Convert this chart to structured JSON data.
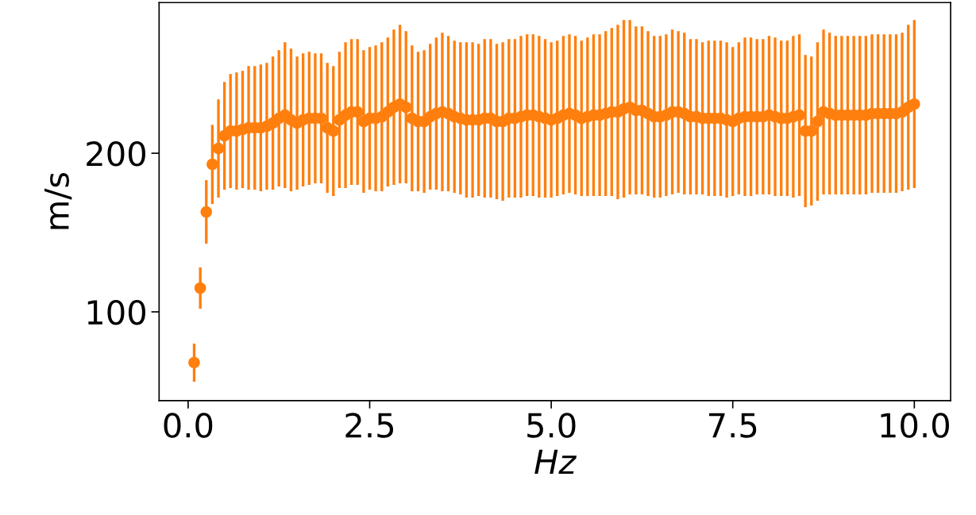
{
  "chart_data": {
    "type": "scatter",
    "xlabel": "Hz",
    "ylabel": "m/s",
    "x": [
      0.083,
      0.167,
      0.25,
      0.333,
      0.417,
      0.5,
      0.583,
      0.667,
      0.75,
      0.833,
      0.917,
      1,
      1.083,
      1.167,
      1.25,
      1.333,
      1.417,
      1.5,
      1.583,
      1.667,
      1.75,
      1.833,
      1.917,
      2,
      2.083,
      2.167,
      2.25,
      2.333,
      2.417,
      2.5,
      2.583,
      2.667,
      2.75,
      2.833,
      2.917,
      3,
      3.083,
      3.167,
      3.25,
      3.333,
      3.417,
      3.5,
      3.583,
      3.667,
      3.75,
      3.833,
      3.917,
      4,
      4.083,
      4.167,
      4.25,
      4.333,
      4.417,
      4.5,
      4.583,
      4.667,
      4.75,
      4.833,
      4.917,
      5,
      5.083,
      5.167,
      5.25,
      5.333,
      5.417,
      5.5,
      5.583,
      5.667,
      5.75,
      5.833,
      5.917,
      6,
      6.083,
      6.167,
      6.25,
      6.333,
      6.417,
      6.5,
      6.583,
      6.667,
      6.75,
      6.833,
      6.917,
      7,
      7.083,
      7.167,
      7.25,
      7.333,
      7.417,
      7.5,
      7.583,
      7.667,
      7.75,
      7.833,
      7.917,
      8,
      8.083,
      8.167,
      8.25,
      8.333,
      8.417,
      8.5,
      8.583,
      8.667,
      8.75,
      8.833,
      8.917,
      9,
      9.083,
      9.167,
      9.25,
      9.333,
      9.417,
      9.5,
      9.583,
      9.667,
      9.75,
      9.833,
      9.917,
      10
    ],
    "series": [
      {
        "color": "#ff7f0e",
        "values": [
          68,
          115,
          163,
          193,
          203,
          211,
          214,
          214,
          215,
          216,
          216,
          216,
          217,
          219,
          222,
          224,
          221,
          219,
          221,
          222,
          222,
          222,
          216,
          214,
          221,
          224,
          226,
          226,
          220,
          222,
          222,
          223,
          226,
          229,
          231,
          229,
          222,
          220,
          220,
          223,
          225,
          226,
          225,
          223,
          222,
          221,
          221,
          221,
          222,
          222,
          220,
          220,
          222,
          222,
          223,
          224,
          224,
          223,
          222,
          221,
          222,
          224,
          225,
          224,
          222,
          223,
          224,
          224,
          225,
          226,
          226,
          228,
          229,
          227,
          227,
          225,
          223,
          223,
          224,
          226,
          226,
          225,
          223,
          223,
          222,
          222,
          222,
          222,
          221,
          220,
          222,
          223,
          223,
          223,
          223,
          224,
          223,
          222,
          222,
          223,
          224,
          214,
          214,
          220,
          226,
          225,
          224,
          224,
          224,
          224,
          224,
          224,
          225,
          225,
          225,
          225,
          225,
          226,
          229,
          231
        ],
        "errors": [
          12,
          13,
          20,
          25,
          31,
          34,
          36,
          37,
          37,
          39,
          39,
          40,
          40,
          42,
          43,
          46,
          45,
          42,
          42,
          42,
          41,
          41,
          41,
          41,
          43,
          46,
          46,
          46,
          45,
          45,
          46,
          47,
          47,
          49,
          50,
          48,
          46,
          44,
          45,
          46,
          48,
          50,
          49,
          48,
          48,
          49,
          49,
          48,
          50,
          50,
          49,
          50,
          50,
          50,
          51,
          51,
          51,
          51,
          50,
          49,
          49,
          50,
          50,
          50,
          49,
          50,
          51,
          51,
          52,
          53,
          55,
          56,
          55,
          53,
          53,
          52,
          51,
          51,
          51,
          52,
          51,
          51,
          49,
          49,
          48,
          49,
          49,
          49,
          49,
          47,
          48,
          50,
          50,
          49,
          49,
          50,
          50,
          49,
          49,
          51,
          51,
          48,
          47,
          50,
          52,
          51,
          50,
          50,
          50,
          50,
          50,
          50,
          50,
          50,
          50,
          50,
          50,
          50,
          52,
          53
        ]
      }
    ],
    "marker": "circle",
    "xlim": [
      -0.4,
      10.5
    ],
    "xticks": [
      {
        "value": 0,
        "label": "0.0"
      },
      {
        "value": 2.5,
        "label": "2.5"
      },
      {
        "value": 5,
        "label": "5.0"
      },
      {
        "value": 7.5,
        "label": "7.5"
      },
      {
        "value": 10,
        "label": "10.0"
      }
    ],
    "ylim": [
      44,
      295
    ],
    "yticks": [
      100,
      200
    ],
    "grid": false
  }
}
